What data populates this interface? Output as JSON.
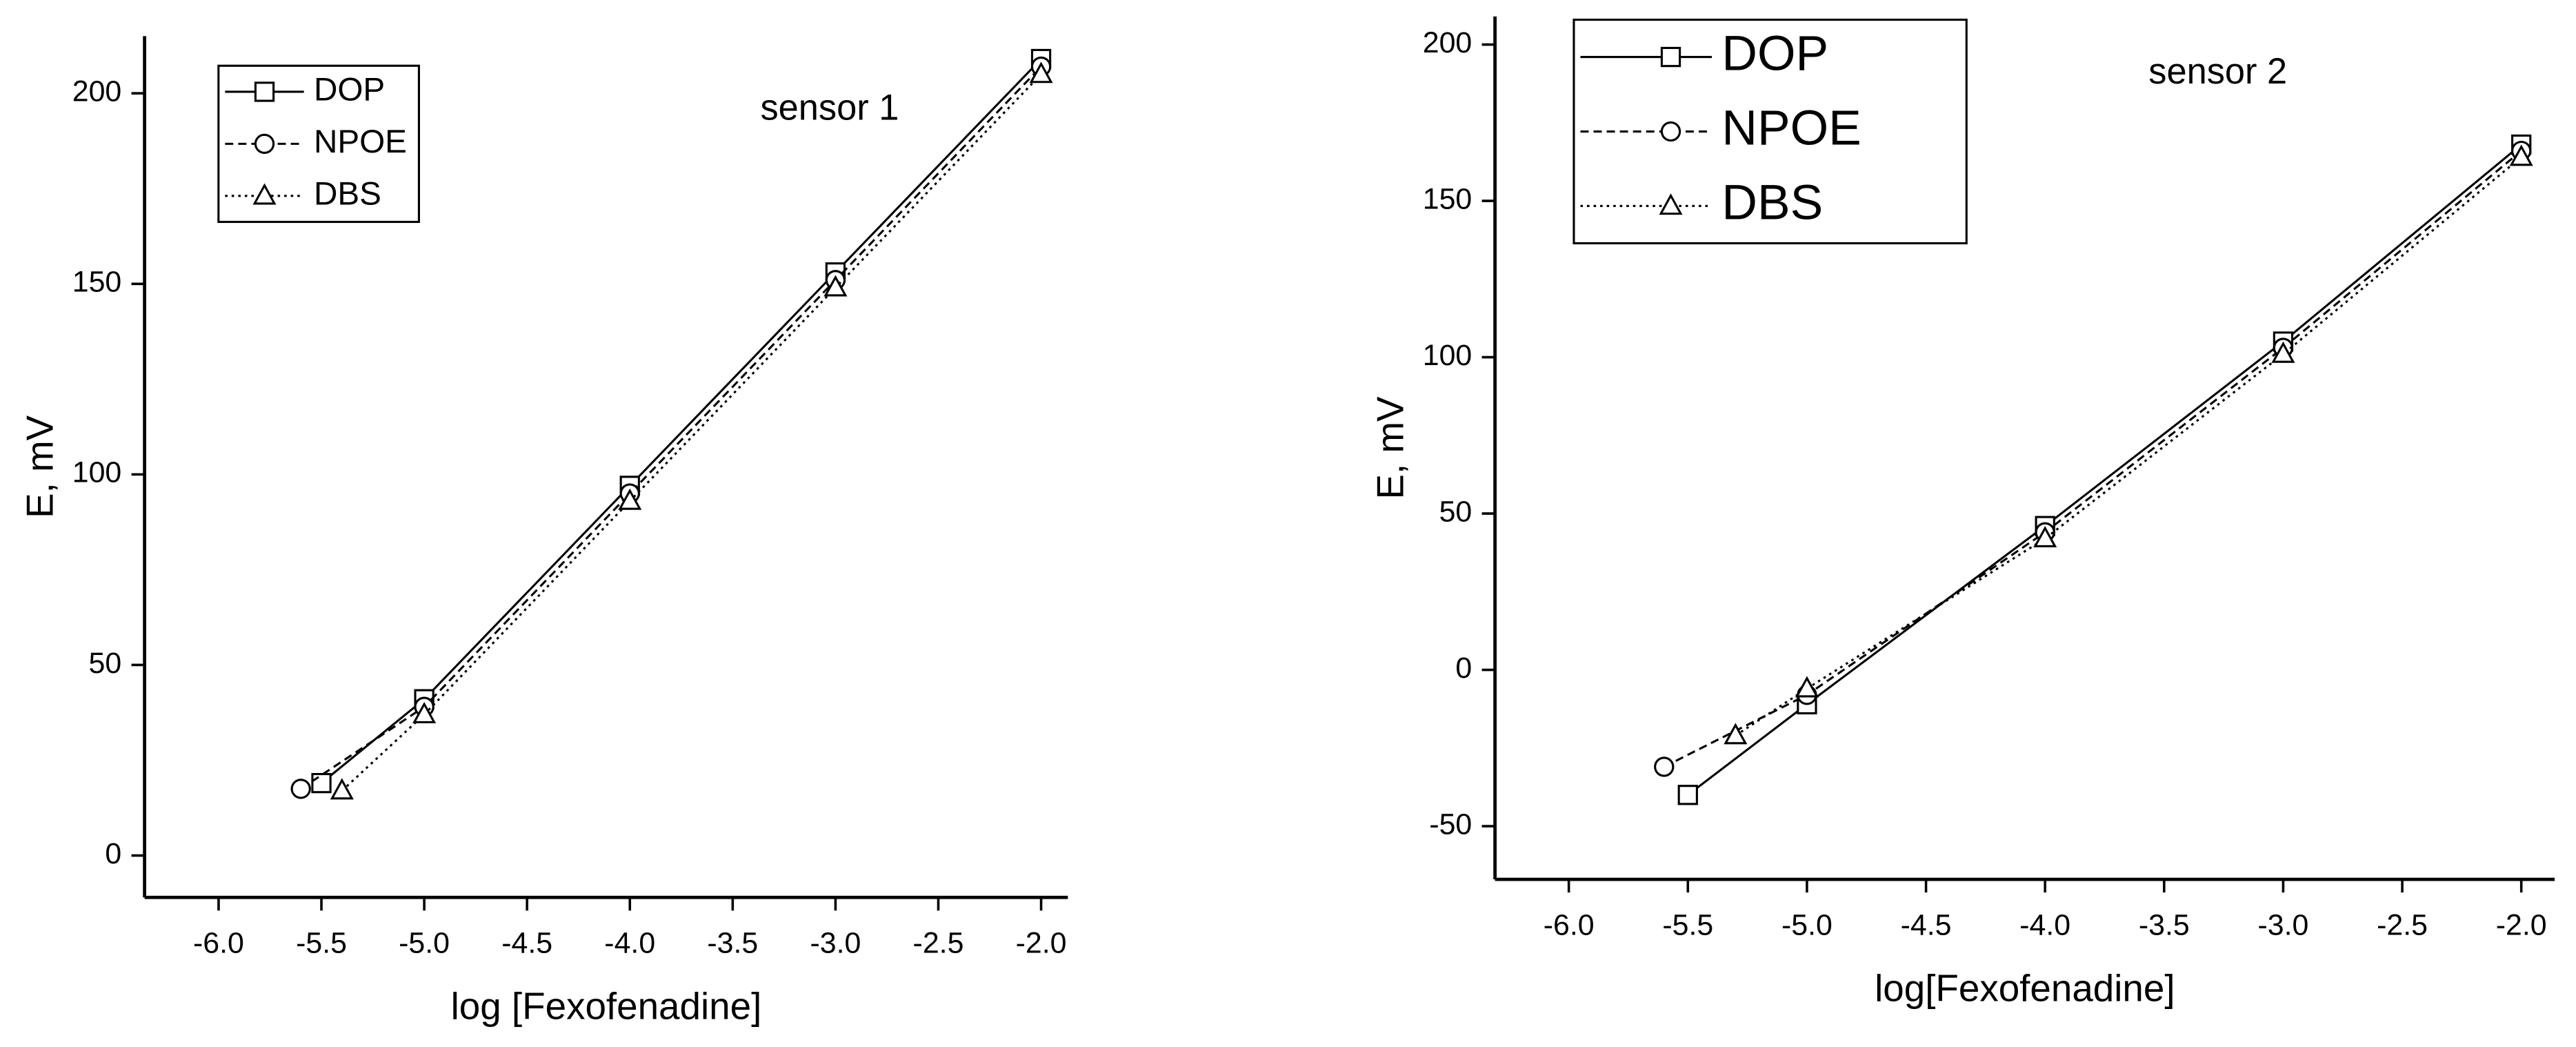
{
  "chart_data": [
    {
      "type": "line",
      "annotation": "sensor 1",
      "xlabel": "log [Fexofenadine]",
      "ylabel": "E, mV",
      "xlim": [
        -6.36,
        -1.87
      ],
      "ylim": [
        -11,
        215
      ],
      "xticks": [
        {
          "value": -6,
          "label": "-6.0"
        },
        -5.5,
        {
          "value": -5,
          "label": "-5.0"
        },
        -4.5,
        {
          "value": -4,
          "label": "-4.0"
        },
        -3.5,
        {
          "value": -3,
          "label": "-3.0"
        },
        -2.5,
        {
          "value": -2,
          "label": "-2.0"
        }
      ],
      "yticks": [
        0,
        50,
        100,
        150,
        200
      ],
      "legend": "upper left",
      "series": [
        {
          "name": "DOP",
          "color": "#000000",
          "marker": "square",
          "linestyle": "solid",
          "x": [
            -5.5,
            -5,
            -4,
            -3,
            -2
          ],
          "values": [
            19,
            41,
            97,
            153,
            209
          ]
        },
        {
          "name": "NPOE",
          "color": "#000000",
          "marker": "circle",
          "linestyle": "dashed",
          "x": [
            -5.6,
            -5,
            -4,
            -3,
            -2
          ],
          "values": [
            17.5,
            39,
            95,
            151,
            207
          ]
        },
        {
          "name": "DBS",
          "color": "#000000",
          "marker": "triangle",
          "linestyle": "dotted",
          "x": [
            -5.4,
            -5,
            -4,
            -3,
            -2
          ],
          "values": [
            17,
            37,
            93,
            149,
            205
          ]
        }
      ]
    },
    {
      "type": "line",
      "annotation": "sensor 2",
      "xlabel": "log[Fexofenadine]",
      "ylabel": "E, mV",
      "xlim": [
        -6.31,
        -1.86
      ],
      "ylim": [
        -67,
        209
      ],
      "xticks": [
        {
          "value": -6,
          "label": "-6.0"
        },
        -5.5,
        {
          "value": -5,
          "label": "-5.0"
        },
        -4.5,
        {
          "value": -4,
          "label": "-4.0"
        },
        -3.5,
        {
          "value": -3,
          "label": "-3.0"
        },
        -2.5,
        {
          "value": -2,
          "label": "-2.0"
        }
      ],
      "yticks": [
        -50,
        0,
        50,
        100,
        150,
        200
      ],
      "legend": "upper left",
      "series": [
        {
          "name": "DOP",
          "color": "#000000",
          "marker": "square",
          "linestyle": "solid",
          "x": [
            -5.5,
            -5,
            -4,
            -3,
            -2
          ],
          "values": [
            -40,
            -11,
            46,
            105,
            168
          ]
        },
        {
          "name": "NPOE",
          "color": "#000000",
          "marker": "circle",
          "linestyle": "dashed",
          "x": [
            -5.6,
            -5,
            -4,
            -3,
            -2
          ],
          "values": [
            -31,
            -8,
            44,
            103,
            166
          ]
        },
        {
          "name": "DBS",
          "color": "#000000",
          "marker": "triangle",
          "linestyle": "dotted",
          "x": [
            -5.3,
            -5,
            -4,
            -3,
            -2
          ],
          "values": [
            -21,
            -6,
            42,
            101,
            164
          ]
        }
      ]
    }
  ]
}
